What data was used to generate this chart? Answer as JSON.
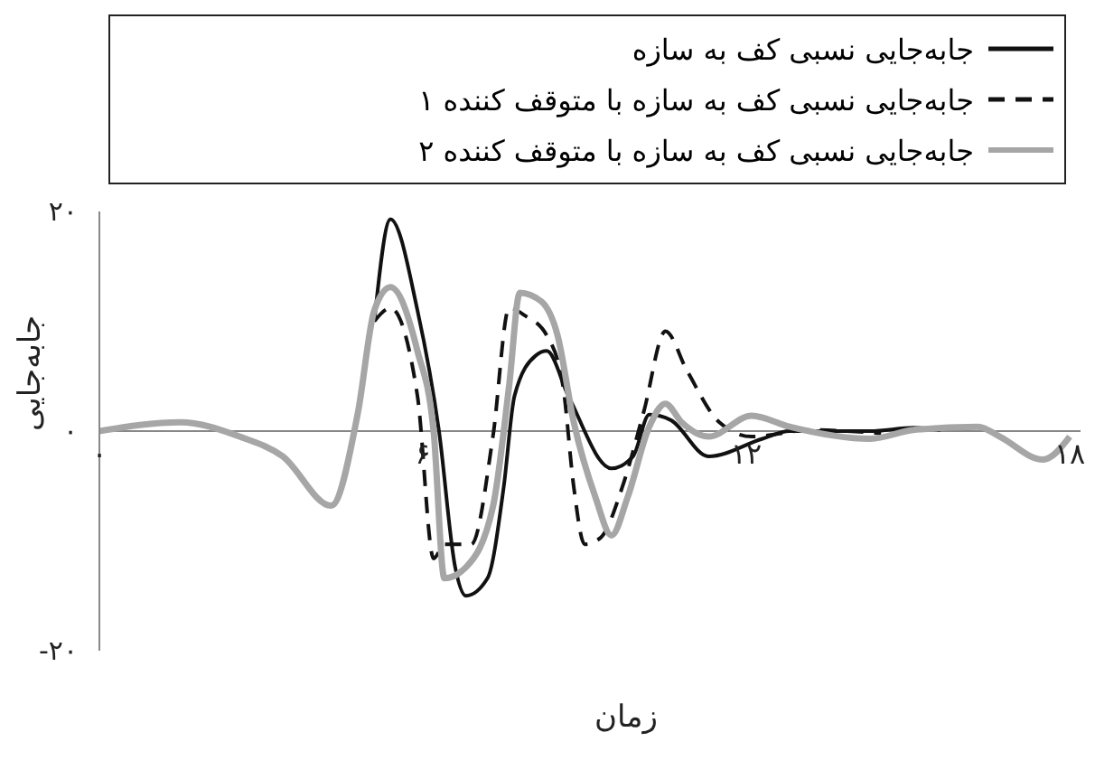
{
  "chart_data": {
    "type": "line",
    "xlabel": "زمان",
    "ylabel": "جابه‌جایی",
    "xlim": [
      0,
      18.2
    ],
    "ylim": [
      -20,
      20
    ],
    "xticks": [
      {
        "value": 0,
        "label": "۰"
      },
      {
        "value": 6,
        "label": "۶"
      },
      {
        "value": 12,
        "label": "۱۲"
      },
      {
        "value": 18,
        "label": "۱۸"
      }
    ],
    "yticks": [
      {
        "value": -20,
        "label": "-۲۰"
      },
      {
        "value": 0,
        "label": "۰"
      },
      {
        "value": 20,
        "label": "۲۰"
      }
    ],
    "grid": false,
    "legend": "top",
    "marker": "none",
    "series": [
      {
        "name": "جابه‌جایی نسبی کف به سازه",
        "color": "#111111",
        "line_style": "solid",
        "x": [
          5.1,
          5.4,
          5.9,
          6.3,
          6.6,
          6.8,
          7.2,
          7.5,
          7.7,
          8.1,
          8.3,
          8.7,
          9.5,
          9.9,
          10.2,
          10.6,
          11.3,
          12.3,
          12.8,
          14.3,
          15.1,
          15.6
        ],
        "values": [
          10,
          19.3,
          11,
          0,
          -12.4,
          -15,
          -13.4,
          -5.1,
          3.2,
          6.9,
          7.3,
          3.2,
          -3.4,
          -2.3,
          1.5,
          1,
          -2.3,
          -0.7,
          0,
          0,
          0.3,
          0.1
        ]
      },
      {
        "name": "جابه‌جایی نسبی کف به سازه با متوقف کننده ۱",
        "color": "#111111",
        "line_style": "dashed",
        "x": [
          5.1,
          5.4,
          5.9,
          6.2,
          6.4,
          6.9,
          7.3,
          7.6,
          7.9,
          8.3,
          8.6,
          8.8,
          9.0,
          9.3,
          9.7,
          10.1,
          10.5,
          10.9,
          11.5,
          12.1,
          13.2,
          14.5
        ],
        "values": [
          10,
          11.2,
          3.2,
          -11.6,
          -10.3,
          -10.3,
          -0.5,
          11.2,
          10.5,
          8.7,
          4.1,
          -5.1,
          -10.3,
          -9.7,
          -5.1,
          1.8,
          9.1,
          5.5,
          0.8,
          -0.5,
          0.1,
          -0.2
        ]
      },
      {
        "name": "جابه‌جایی نسبی کف به سازه با متوقف کننده ۲",
        "color": "#a6a6a6",
        "line_style": "solid",
        "x": [
          0,
          1.5,
          2.6,
          3.4,
          4.3,
          4.8,
          5.1,
          5.4,
          5.9,
          6.2,
          6.4,
          6.8,
          7.3,
          7.6,
          7.8,
          8.2,
          8.5,
          8.8,
          9.2,
          9.5,
          9.8,
          10.2,
          10.5,
          10.8,
          11.3,
          12.1,
          12.8,
          14.3,
          15.1,
          16.3,
          16.7,
          17.5,
          18.0
        ],
        "values": [
          0,
          0.8,
          -0.5,
          -2.3,
          -6.8,
          1.8,
          11,
          13.1,
          7.3,
          0,
          -13.4,
          -12.4,
          -6.9,
          4.1,
          12.6,
          11.8,
          8.7,
          0.8,
          -6,
          -9.5,
          -6,
          0.4,
          2.5,
          0.8,
          -0.5,
          1.4,
          0.4,
          -0.7,
          0.1,
          0.4,
          -0.5,
          -2.6,
          -0.5
        ]
      }
    ]
  }
}
